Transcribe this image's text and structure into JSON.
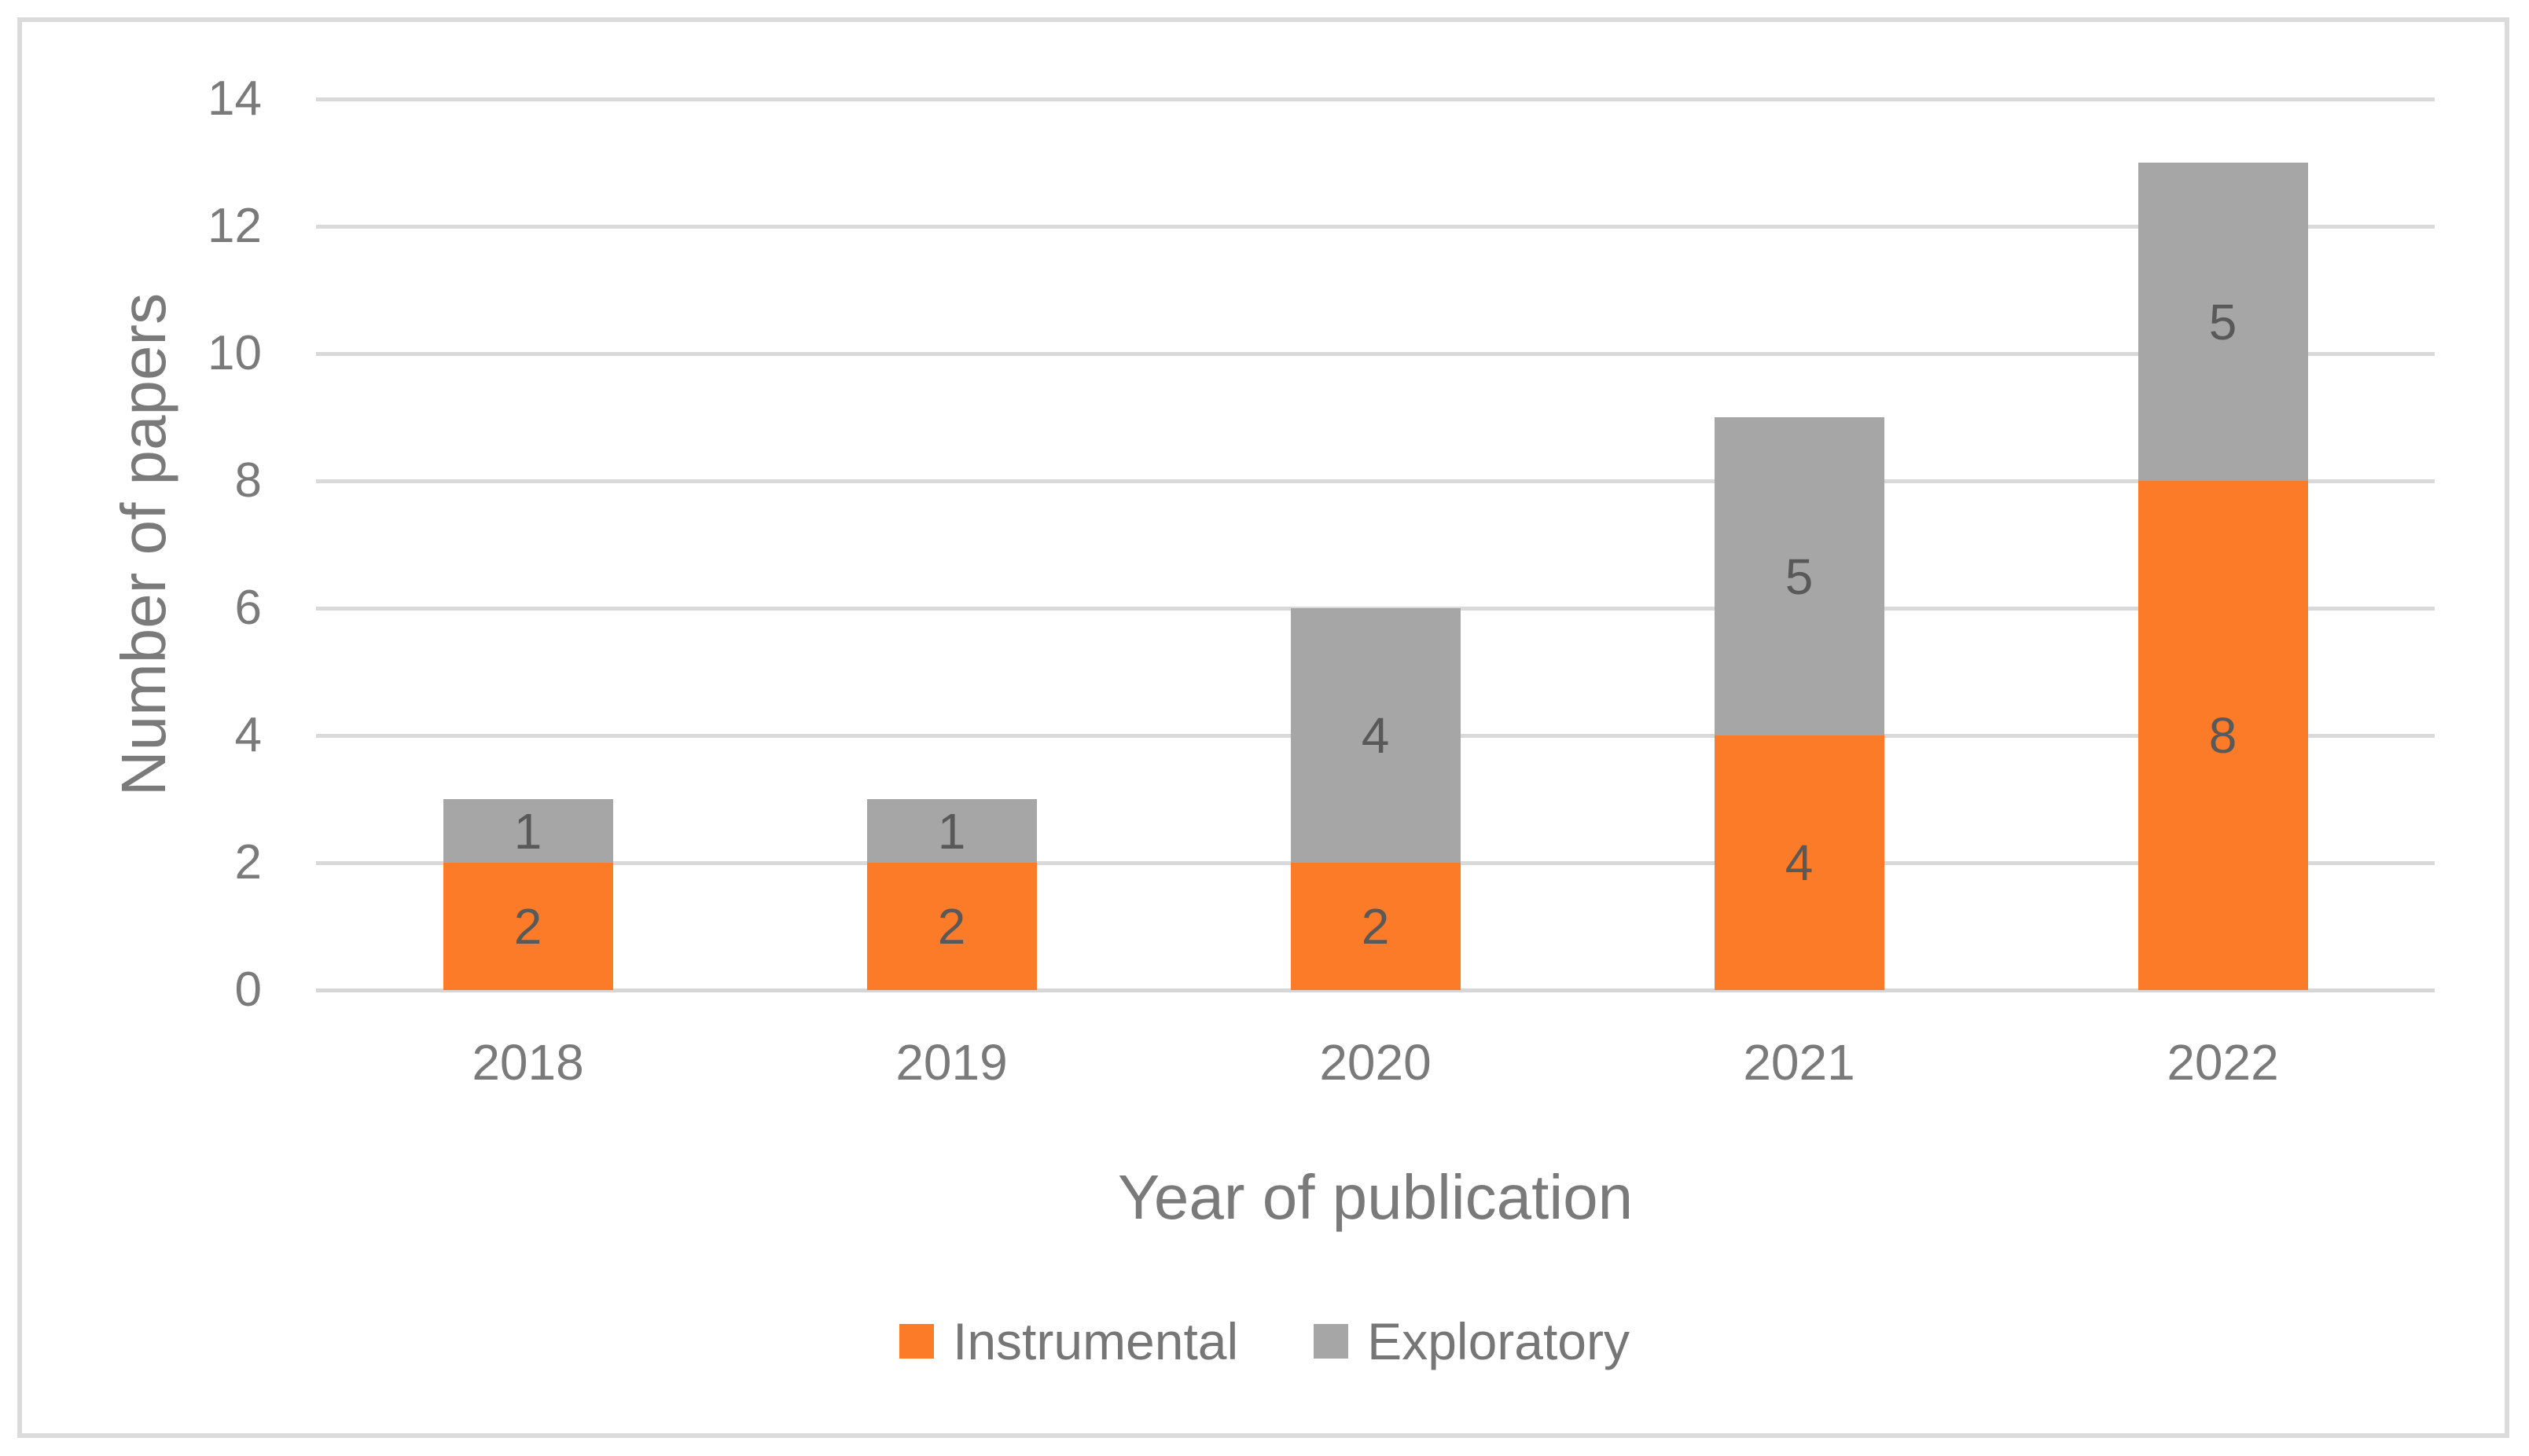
{
  "chart_data": {
    "type": "bar",
    "stacked": true,
    "categories": [
      "2018",
      "2019",
      "2020",
      "2021",
      "2022"
    ],
    "series": [
      {
        "name": "Instrumental",
        "color": "#fb7b28",
        "values": [
          2,
          2,
          2,
          4,
          8
        ]
      },
      {
        "name": "Exploratory",
        "color": "#a6a6a6",
        "values": [
          1,
          1,
          4,
          5,
          5
        ]
      }
    ],
    "totals": [
      3,
      3,
      6,
      9,
      13
    ],
    "xlabel": "Year of publication",
    "ylabel": "Number of papers",
    "ylim": [
      0,
      14
    ],
    "yticks": [
      0,
      2,
      4,
      6,
      8,
      10,
      12,
      14
    ],
    "grid": true,
    "data_labels": true,
    "legend_position": "bottom",
    "colors": {
      "gridline": "#d9d9d9",
      "axis_line": "#d6d6d6",
      "tick_text": "#7a7a7a",
      "axis_title_text": "#7a7a7a",
      "data_label_text": "#595959",
      "legend_text": "#767676",
      "frame_border": "#dbdbdb",
      "background": "#ffffff"
    }
  }
}
